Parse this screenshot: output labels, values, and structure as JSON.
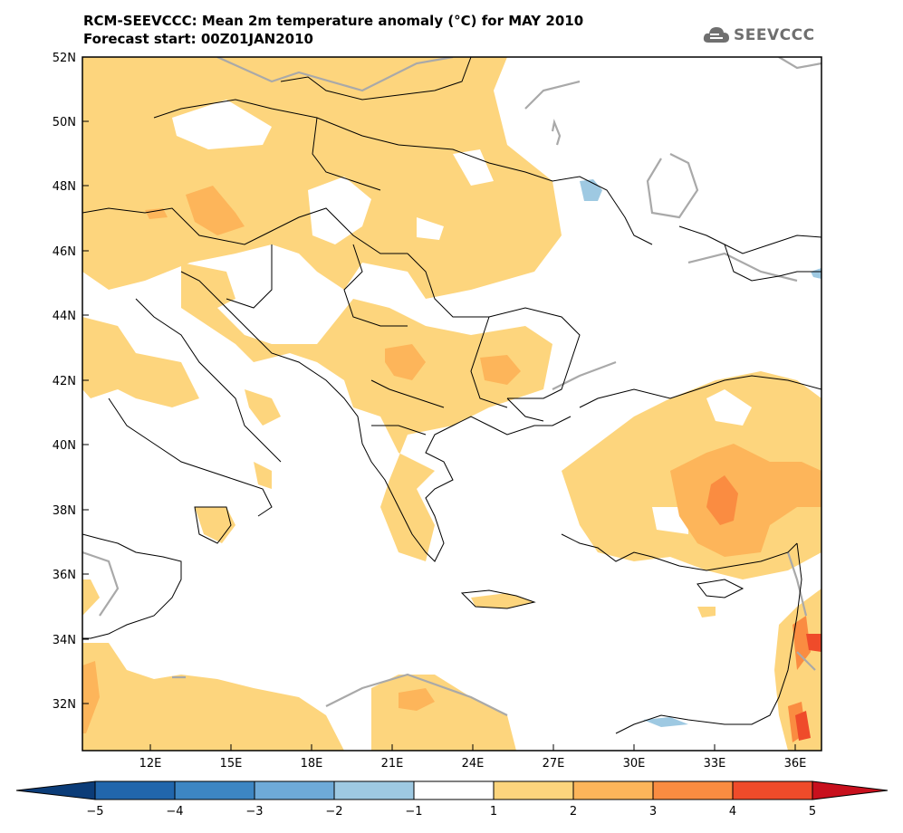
{
  "title": {
    "line1": "RCM-SEEVCCC: Mean 2m temperature anomaly (°C) for MAY 2010",
    "line2": "Forecast start: 00Z01JAN2010"
  },
  "logo": {
    "text": "SEEVCCC",
    "icon": "cloud-icon"
  },
  "map": {
    "lat_labels": [
      "52N",
      "50N",
      "48N",
      "46N",
      "44N",
      "42N",
      "40N",
      "38N",
      "36N",
      "34N",
      "32N"
    ],
    "lon_labels": [
      "12E",
      "15E",
      "18E",
      "21E",
      "24E",
      "27E",
      "30E",
      "33E",
      "36E"
    ]
  },
  "colorbar": {
    "labels": [
      "−5",
      "−4",
      "−3",
      "−2",
      "−1",
      "1",
      "2",
      "3",
      "4",
      "5"
    ],
    "colors": {
      "lt_minus5": "#0b3c78",
      "minus5_minus4": "#2166ac",
      "minus4_minus3": "#3d86c3",
      "minus3_minus2": "#6eaad8",
      "minus2_minus1": "#9ec9e2",
      "minus1_1": "#ffffff",
      "1_2": "#fdd57d",
      "2_3": "#fdb55a",
      "3_4": "#fa8c41",
      "4_5": "#ef4b2a",
      "gt_5": "#c8101d"
    }
  }
}
